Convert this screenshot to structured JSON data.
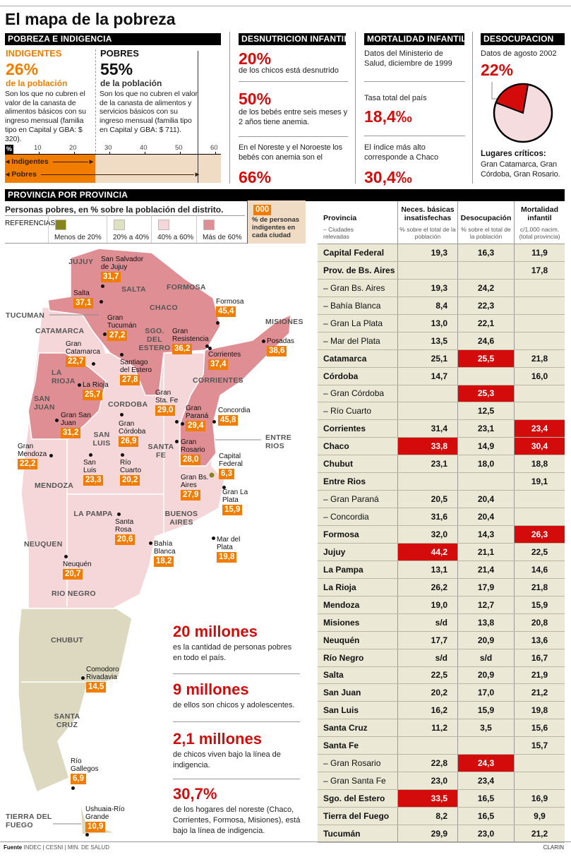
{
  "title": "El mapa de la pobreza",
  "pobreza": {
    "header": "POBREZA E INDIGENCIA",
    "indigentes": {
      "label": "INDIGENTES",
      "value": "26%",
      "sub": "de la población",
      "desc": "Son los que no cubren el valor de la canasta de alimentos básicos con su ingreso mensual (familia tipo en Capital y GBA: $ 320)."
    },
    "pobres": {
      "label": "POBRES",
      "value": "55%",
      "sub": "de la población",
      "desc": "Son los que no cubren el valor de la canasta de alimentos y servicios básicos con su ingreso mensual (familia tipo en Capital y GBA: $ 711)."
    },
    "scale_unit": "%",
    "ticks": [
      "10",
      "20",
      "30",
      "40",
      "50",
      "60"
    ],
    "bar_labels": [
      "Indigentes",
      "Pobres"
    ]
  },
  "desnutricion": {
    "header": "DESNUTRICION INFANTIL",
    "items": [
      {
        "value": "20%",
        "text": "de los chicos está desnutrido"
      },
      {
        "value": "50%",
        "text": "de los bebés entre seis meses y 2 años tiene anemia."
      },
      {
        "value": "66%",
        "text": "En el Noreste y el Noroeste los bebés con anemia son el"
      }
    ]
  },
  "mortalidad": {
    "header": "MORTALIDAD INFANTIL",
    "source": "Datos del Ministerio de Salud, diciembre de 1999",
    "total_label": "Tasa total del país",
    "total": "18,4‰",
    "max_label": "El índice más alto corresponde a Chaco",
    "max": "30,4‰"
  },
  "desocupacion": {
    "header": "DESOCUPACION",
    "source": "Datos de agosto 2002",
    "value": "22%",
    "critical_title": "Lugares críticos:",
    "critical": "Gran Catamarca, Gran Córdoba, Gran Rosario."
  },
  "provincia": {
    "header": "PROVINCIA POR PROVINCIA",
    "subtitle": "Personas pobres, en % sobre la población del distrito.",
    "ref_label": "REFERENCIAS",
    "legend": [
      {
        "label": "Menos de 20%",
        "color": "#85851c"
      },
      {
        "label": "20% a 40%",
        "color": "#dfe2c1"
      },
      {
        "label": "40% a 60%",
        "color": "#f5d7da"
      },
      {
        "label": "Más de 60%",
        "color": "#df8f94"
      }
    ],
    "box_sample": "000",
    "box_text": "% de personas indigentes en cada ciudad"
  },
  "map": {
    "provinces": [
      "JUJUY",
      "SALTA",
      "FORMOSA",
      "CHACO",
      "TUCUMAN",
      "CATAMARCA",
      "SGO. DEL ESTERO",
      "MISIONES",
      "LA RIOJA",
      "CORRIENTES",
      "SAN JUAN",
      "CORDOBA",
      "ENTRE RIOS",
      "SAN LUIS",
      "SANTA FE",
      "MENDOZA",
      "LA PAMPA",
      "BUENOS AIRES",
      "NEUQUEN",
      "RIO NEGRO",
      "CHUBUT",
      "SANTA CRUZ",
      "TIERRA DEL FUEGO"
    ],
    "cities": [
      {
        "name": "San Salvador de Jujuy",
        "value": "31,7"
      },
      {
        "name": "Salta",
        "value": "37,1"
      },
      {
        "name": "Gran Tucumán",
        "value": "27,2"
      },
      {
        "name": "Formosa",
        "value": "45,4"
      },
      {
        "name": "Gran Resistencia",
        "value": "36,2"
      },
      {
        "name": "Corrientes",
        "value": "37,4"
      },
      {
        "name": "Posadas",
        "value": "38,6"
      },
      {
        "name": "Gran Catamarca",
        "value": "22,7"
      },
      {
        "name": "Santiago del Estero",
        "value": "27,8"
      },
      {
        "name": "La Rioja",
        "value": "25,7"
      },
      {
        "name": "Gran San Juan",
        "value": "31,2"
      },
      {
        "name": "Gran Córdoba",
        "value": "26,9"
      },
      {
        "name": "Gran Sta. Fe",
        "value": "29,0"
      },
      {
        "name": "Gran Paraná",
        "value": "29,4"
      },
      {
        "name": "Concordia",
        "value": "45,8"
      },
      {
        "name": "Gran Rosario",
        "value": "28,0"
      },
      {
        "name": "Gran Mendoza",
        "value": "22,2"
      },
      {
        "name": "San Luis",
        "value": "23,3"
      },
      {
        "name": "Río Cuarto",
        "value": "20,2"
      },
      {
        "name": "Capital Federal",
        "value": "6,3"
      },
      {
        "name": "Gran Bs. Aires",
        "value": "27,9"
      },
      {
        "name": "Gran La Plata",
        "value": "15,9"
      },
      {
        "name": "Santa Rosa",
        "value": "20,6"
      },
      {
        "name": "Bahía Blanca",
        "value": "18,2"
      },
      {
        "name": "Mar del Plata",
        "value": "19,8"
      },
      {
        "name": "Neuquén",
        "value": "20,7"
      },
      {
        "name": "Comodoro Rivadavia",
        "value": "14,5"
      },
      {
        "name": "Río Gallegos",
        "value": "6,9"
      },
      {
        "name": "Ushuaia-Río Grande",
        "value": "10,9"
      }
    ]
  },
  "facts": [
    {
      "value": "20 millones",
      "text": "es la cantidad de personas pobres en todo el país."
    },
    {
      "value": "9 millones",
      "text": "de ellos son chicos y adolescentes."
    },
    {
      "value": "2,1 millones",
      "text": "de chicos viven bajo la línea de indigencia."
    },
    {
      "value": "30,7%",
      "text": "de los hogares del noreste (Chaco, Corrientes, Formosa, Misiones), está bajo la línea de indigencia."
    }
  ],
  "table": {
    "headers": [
      {
        "title": "Provincia",
        "sub": "– Ciudades relevadas"
      },
      {
        "title": "Neces. básicas insatisfechas",
        "sub": "% sobre el total de la población"
      },
      {
        "title": "Desocupación",
        "sub": "% sobre el total de la población"
      },
      {
        "title": "Mortalidad infantil",
        "sub": "c/1.000 nacim. (total provincia)"
      }
    ],
    "rows": [
      {
        "name": "Capital Federal",
        "nbi": "19,3",
        "desoc": "16,3",
        "mort": "11,9",
        "sub": false,
        "hl": []
      },
      {
        "name": "Prov. de Bs. Aires",
        "nbi": "",
        "desoc": "",
        "mort": "17,8",
        "sub": false,
        "hl": []
      },
      {
        "name": "– Gran Bs. Aires",
        "nbi": "19,3",
        "desoc": "24,2",
        "mort": "",
        "sub": true,
        "hl": []
      },
      {
        "name": "– Bahía Blanca",
        "nbi": "8,4",
        "desoc": "22,3",
        "mort": "",
        "sub": true,
        "hl": []
      },
      {
        "name": "– Gran La Plata",
        "nbi": "13,0",
        "desoc": "22,1",
        "mort": "",
        "sub": true,
        "hl": []
      },
      {
        "name": "– Mar del Plata",
        "nbi": "13,5",
        "desoc": "24,6",
        "mort": "",
        "sub": true,
        "hl": []
      },
      {
        "name": "Catamarca",
        "nbi": "25,1",
        "desoc": "25,5",
        "mort": "21,8",
        "sub": false,
        "hl": [
          "desoc"
        ]
      },
      {
        "name": "Córdoba",
        "nbi": "14,7",
        "desoc": "",
        "mort": "16,0",
        "sub": false,
        "hl": []
      },
      {
        "name": "– Gran Córdoba",
        "nbi": "",
        "desoc": "25,3",
        "mort": "",
        "sub": true,
        "hl": [
          "desoc"
        ]
      },
      {
        "name": "– Río Cuarto",
        "nbi": "",
        "desoc": "12,5",
        "mort": "",
        "sub": true,
        "hl": []
      },
      {
        "name": "Corrientes",
        "nbi": "31,4",
        "desoc": "23,1",
        "mort": "23,4",
        "sub": false,
        "hl": [
          "mort"
        ]
      },
      {
        "name": "Chaco",
        "nbi": "33,8",
        "desoc": "14,9",
        "mort": "30,4",
        "sub": false,
        "hl": [
          "nbi",
          "mort"
        ]
      },
      {
        "name": "Chubut",
        "nbi": "23,1",
        "desoc": "18,0",
        "mort": "18,8",
        "sub": false,
        "hl": []
      },
      {
        "name": "Entre Rios",
        "nbi": "",
        "desoc": "",
        "mort": "19,1",
        "sub": false,
        "hl": []
      },
      {
        "name": "– Gran Paraná",
        "nbi": "20,5",
        "desoc": "20,4",
        "mort": "",
        "sub": true,
        "hl": []
      },
      {
        "name": "– Concordia",
        "nbi": "31,6",
        "desoc": "20,4",
        "mort": "",
        "sub": true,
        "hl": []
      },
      {
        "name": "Formosa",
        "nbi": "32,0",
        "desoc": "14,3",
        "mort": "26,3",
        "sub": false,
        "hl": [
          "mort"
        ]
      },
      {
        "name": "Jujuy",
        "nbi": "44,2",
        "desoc": "21,1",
        "mort": "22,5",
        "sub": false,
        "hl": [
          "nbi"
        ]
      },
      {
        "name": "La Pampa",
        "nbi": "13,1",
        "desoc": "21,4",
        "mort": "14,6",
        "sub": false,
        "hl": []
      },
      {
        "name": "La Rioja",
        "nbi": "26,2",
        "desoc": "17,9",
        "mort": "21,8",
        "sub": false,
        "hl": []
      },
      {
        "name": "Mendoza",
        "nbi": "19,0",
        "desoc": "12,7",
        "mort": "15,9",
        "sub": false,
        "hl": []
      },
      {
        "name": "Misiones",
        "nbi": "s/d",
        "desoc": "13,8",
        "mort": "20,8",
        "sub": false,
        "hl": []
      },
      {
        "name": "Neuquén",
        "nbi": "17,7",
        "desoc": "20,9",
        "mort": "13,6",
        "sub": false,
        "hl": []
      },
      {
        "name": "Río Negro",
        "nbi": "s/d",
        "desoc": "s/d",
        "mort": "16,7",
        "sub": false,
        "hl": []
      },
      {
        "name": "Salta",
        "nbi": "22,5",
        "desoc": "20,9",
        "mort": "21,9",
        "sub": false,
        "hl": []
      },
      {
        "name": "San Juan",
        "nbi": "20,2",
        "desoc": "17,0",
        "mort": "21,2",
        "sub": false,
        "hl": []
      },
      {
        "name": "San Luis",
        "nbi": "16,2",
        "desoc": "15,9",
        "mort": "19,8",
        "sub": false,
        "hl": []
      },
      {
        "name": "Santa Cruz",
        "nbi": "11,2",
        "desoc": "3,5",
        "mort": "15,6",
        "sub": false,
        "hl": []
      },
      {
        "name": "Santa Fe",
        "nbi": "",
        "desoc": "",
        "mort": "15,7",
        "sub": false,
        "hl": []
      },
      {
        "name": "– Gran Rosario",
        "nbi": "22,8",
        "desoc": "24,3",
        "mort": "",
        "sub": true,
        "hl": [
          "desoc"
        ]
      },
      {
        "name": "– Gran Santa Fe",
        "nbi": "23,0",
        "desoc": "23,4",
        "mort": "",
        "sub": true,
        "hl": []
      },
      {
        "name": "Sgo. del Estero",
        "nbi": "33,5",
        "desoc": "16,5",
        "mort": "16,9",
        "sub": false,
        "hl": [
          "nbi"
        ]
      },
      {
        "name": "Tierra del Fuego",
        "nbi": "8,2",
        "desoc": "16,5",
        "mort": "9,9",
        "sub": false,
        "hl": []
      },
      {
        "name": "Tucumán",
        "nbi": "29,9",
        "desoc": "23,0",
        "mort": "21,2",
        "sub": false,
        "hl": []
      }
    ]
  },
  "footer": {
    "source_label": "Fuente",
    "sources": "INDEC | CESNI | MIN. DE SALUD",
    "credit": "CLARIN"
  },
  "chart_data": [
    {
      "type": "pie",
      "title": "DESOCUPACION",
      "values": [
        22,
        78
      ],
      "colors": [
        "#d40b0b",
        "#f5dcde"
      ]
    },
    {
      "type": "bar",
      "categories": [
        "Indigentes",
        "Pobres"
      ],
      "values": [
        26,
        55
      ],
      "xlim": [
        0,
        60
      ],
      "ticks": [
        10,
        20,
        30,
        40,
        50,
        60
      ],
      "colors": [
        "#f07d00",
        "#f0dcc4"
      ]
    }
  ]
}
